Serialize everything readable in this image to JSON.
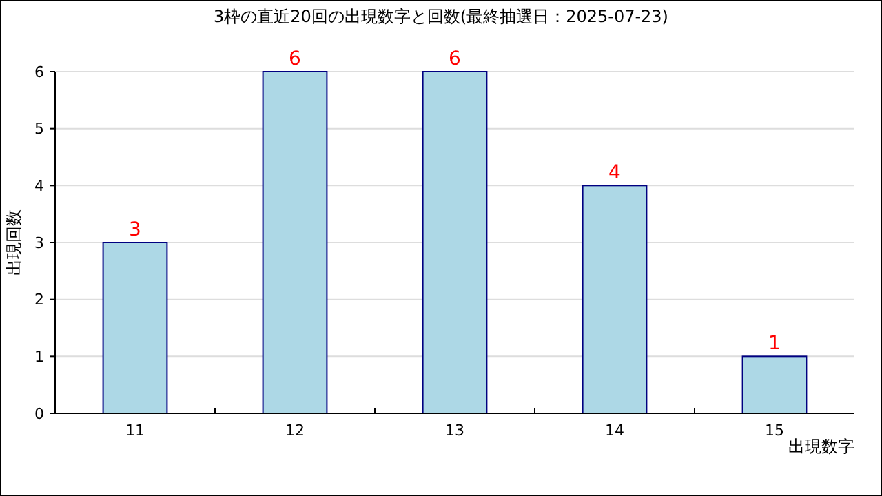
{
  "chart_data": {
    "type": "bar",
    "title": "3枠の直近20回の出現数字と回数(最終抽選日：2025-07-23)",
    "xlabel": "出現数字",
    "ylabel": "出現回数",
    "categories": [
      "11",
      "12",
      "13",
      "14",
      "15"
    ],
    "values": [
      3,
      6,
      6,
      4,
      1
    ],
    "color": "#add8e6",
    "ylim": [
      0,
      6
    ],
    "yticks": [
      0,
      1,
      2,
      3,
      4,
      5,
      6
    ],
    "grid": "y",
    "data_labels": true
  }
}
